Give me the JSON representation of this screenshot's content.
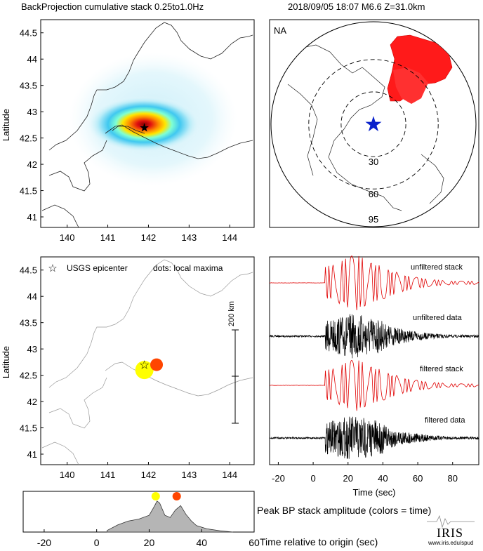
{
  "header": {
    "left_title": "BackProjection cumulative stack 0.25to1.0Hz",
    "right_title": "2018/09/05 18:07   M6.6   Z=31.0km"
  },
  "map_axes": {
    "lon_ticks": [
      140,
      141,
      142,
      143,
      144
    ],
    "lat_ticks": [
      41,
      41.5,
      42,
      42.5,
      43,
      43.5,
      44,
      44.5
    ],
    "lon_range": [
      139.35,
      144.6
    ],
    "lat_range": [
      40.8,
      44.75
    ],
    "ylabel": "Latitude"
  },
  "epicenter": {
    "lon": 141.9,
    "lat": 42.7
  },
  "globe": {
    "label": "NA",
    "ring_labels": [
      "30",
      "60",
      "95"
    ],
    "ring_distances_deg": [
      30,
      60,
      95
    ]
  },
  "legend": {
    "epicenter": "USGS epicenter",
    "dots": "dots: local maxima"
  },
  "scale_bar": {
    "label": "200 km"
  },
  "local_maxima": [
    {
      "lon": 141.9,
      "lat": 42.6,
      "color": "#ffff00",
      "size": "large"
    },
    {
      "lon": 142.2,
      "lat": 42.7,
      "color": "#ff4500",
      "size": "small"
    }
  ],
  "traces": {
    "labels": [
      "unfiltered stack",
      "unfiltered data",
      "filtered stack",
      "filtered data"
    ],
    "x_ticks": [
      -20,
      0,
      20,
      40,
      60,
      80
    ],
    "x_range": [
      -25,
      95
    ],
    "xlabel": "Time (sec)"
  },
  "chart_data": {
    "type": "area",
    "title": "Peak BP stack amplitude (colors = time)",
    "xlabel": "Time relative to origin (sec)",
    "x_ticks": [
      -20,
      0,
      20,
      40,
      60
    ],
    "xlim": [
      -28,
      60
    ],
    "x": [
      4,
      8,
      12,
      16,
      20,
      22,
      23,
      24,
      26,
      28,
      30,
      32,
      34,
      36,
      38,
      42,
      47,
      52
    ],
    "y": [
      0.05,
      0.22,
      0.34,
      0.4,
      0.52,
      0.8,
      0.96,
      0.9,
      0.52,
      0.45,
      0.68,
      0.82,
      0.55,
      0.35,
      0.2,
      0.1,
      0.04,
      0.0
    ],
    "peak_dots": [
      {
        "time": 22.5,
        "color": "#ffff00"
      },
      {
        "time": 30.5,
        "color": "#ff4500"
      }
    ]
  },
  "logo": {
    "name": "IRIS",
    "url": "www.iris.edu/spud"
  }
}
